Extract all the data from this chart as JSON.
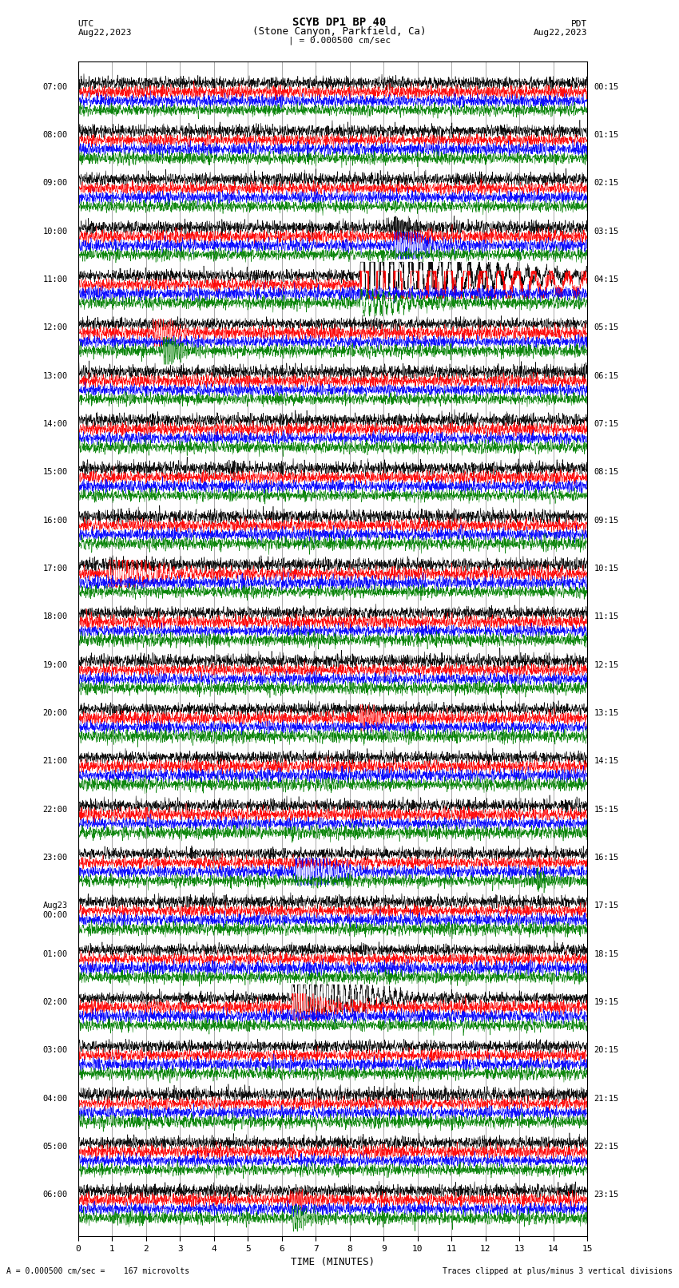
{
  "title_line1": "SCYB DP1 BP 40",
  "title_line2": "(Stone Canyon, Parkfield, Ca)",
  "scale_text": "| = 0.000500 cm/sec",
  "utc_label": "UTC",
  "pdt_label": "PDT",
  "date_left": "Aug22,2023",
  "date_right": "Aug22,2023",
  "xlabel": "TIME (MINUTES)",
  "footer_left": "A = 0.000500 cm/sec =    167 microvolts",
  "footer_right": "Traces clipped at plus/minus 3 vertical divisions",
  "bg_color": "#ffffff",
  "trace_colors": [
    "black",
    "red",
    "blue",
    "green"
  ],
  "n_traces_per_row": 4,
  "x_min": 0,
  "x_max": 15,
  "x_ticks": [
    0,
    1,
    2,
    3,
    4,
    5,
    6,
    7,
    8,
    9,
    10,
    11,
    12,
    13,
    14,
    15
  ],
  "left_times": [
    "07:00",
    "08:00",
    "09:00",
    "10:00",
    "11:00",
    "12:00",
    "13:00",
    "14:00",
    "15:00",
    "16:00",
    "17:00",
    "18:00",
    "19:00",
    "20:00",
    "21:00",
    "22:00",
    "23:00",
    "Aug23\n00:00",
    "01:00",
    "02:00",
    "03:00",
    "04:00",
    "05:00",
    "06:00"
  ],
  "right_times": [
    "00:15",
    "01:15",
    "02:15",
    "03:15",
    "04:15",
    "05:15",
    "06:15",
    "07:15",
    "08:15",
    "09:15",
    "10:15",
    "11:15",
    "12:15",
    "13:15",
    "14:15",
    "15:15",
    "16:15",
    "17:15",
    "18:15",
    "19:15",
    "20:15",
    "21:15",
    "22:15",
    "23:15"
  ],
  "n_rows": 24,
  "fig_width": 8.5,
  "fig_height": 16.13,
  "seed": 42,
  "noise_amp": 0.28,
  "trace_sep": 0.9,
  "row_sep": 4.8,
  "clip_level": 1.35
}
